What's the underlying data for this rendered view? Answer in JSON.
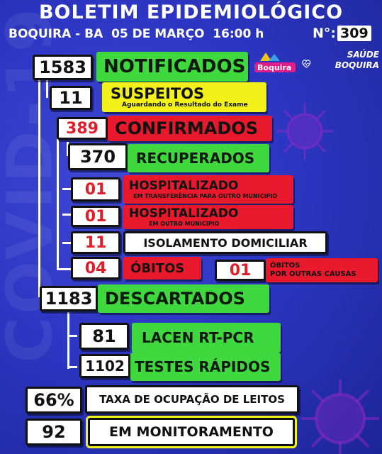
{
  "header": {
    "title": "BOLETIM EPIDEMIOLÓGICO",
    "location_date": "BOQUIRA - BA  05 DE MARÇO  16:00 h",
    "number_label": "N°:",
    "number_value": "309"
  },
  "logos": {
    "city_logo_text": "Boquira",
    "saude_line1": "SAÚDE",
    "saude_line2": "BOQUIRA"
  },
  "watermark": "COVID-19",
  "stats": {
    "notificados": {
      "value": "1583",
      "label": "NOTIFICADOS"
    },
    "suspeitos": {
      "value": "11",
      "label": "SUSPEITOS",
      "sublabel": "Aguardando o Resultado do Exame"
    },
    "confirmados": {
      "value": "389",
      "label": "CONFIRMADOS"
    },
    "recuperados": {
      "value": "370",
      "label": "RECUPERADOS"
    },
    "hosp_transfer": {
      "value": "01",
      "label": "HOSPITALIZADO",
      "sublabel": "EM TRANSFERÊNCIA PARA OUTRO MUNICIPIO"
    },
    "hosp_outro": {
      "value": "01",
      "label": "HOSPITALIZADO",
      "sublabel": "EM OUTRO MUNICIPIO"
    },
    "isolamento": {
      "value": "11",
      "label": "ISOLAMENTO DOMICILIAR"
    },
    "obitos": {
      "value": "04",
      "label": "ÓBITOS"
    },
    "obitos_outras": {
      "value": "01",
      "label_line1": "ÓBITOS",
      "label_line2": "POR OUTRAS CAUSAS"
    },
    "descartados": {
      "value": "1183",
      "label": "DESCARTADOS"
    },
    "lacen": {
      "value": "81",
      "label": "LACEN RT-PCR"
    },
    "testes": {
      "value": "1102",
      "label": "TESTES RÁPIDOS"
    },
    "ocupacao": {
      "value": "66%",
      "label": "TAXA DE OCUPAÇÃO DE LEITOS"
    },
    "monitoramento": {
      "value": "92",
      "label": "EM MONITORAMENTO"
    }
  },
  "colors": {
    "background": "#2c36c2",
    "green": "#3fd93f",
    "red": "#e8192c",
    "yellow": "#f2f21a",
    "white": "#ffffff"
  }
}
